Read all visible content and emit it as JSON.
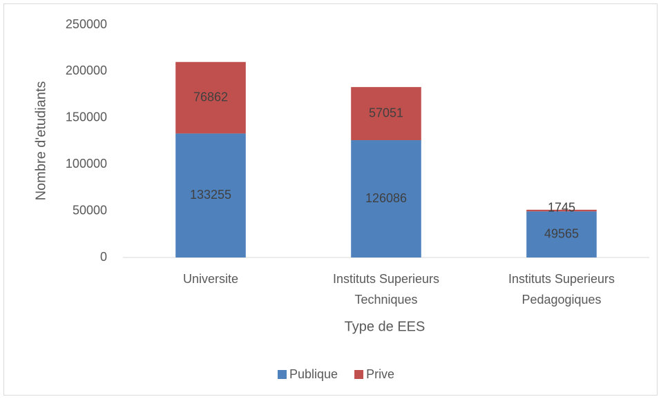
{
  "chart_data": {
    "type": "stacked_bar",
    "categories": [
      "Universite",
      "Instituts Superieurs Techniques",
      "Instituts Superieurs Pedagogiques"
    ],
    "series": [
      {
        "name": "Publique",
        "color": "#4f81bd",
        "values": [
          133255,
          126086,
          49565
        ]
      },
      {
        "name": "Prive",
        "color": "#c0504d",
        "values": [
          76862,
          57051,
          1745
        ]
      }
    ],
    "ylabel": "Nombre d'etudiants",
    "xlabel": "Type de EES",
    "ylim": [
      0,
      250000
    ],
    "yticks": [
      0,
      50000,
      100000,
      150000,
      200000,
      250000
    ],
    "grid": false,
    "legend": "bottom"
  }
}
